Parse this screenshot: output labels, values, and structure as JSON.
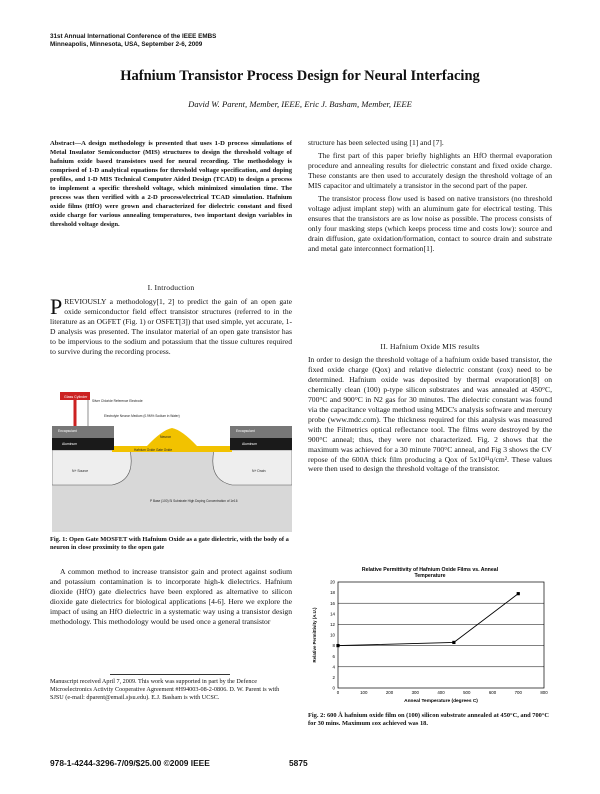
{
  "header": {
    "conference_line1": "31st Annual International Conference of the IEEE EMBS",
    "conference_line2": "Minneapolis, Minnesota, USA, September 2-6, 2009"
  },
  "title": "Hafnium Transistor Process Design for Neural Interfacing",
  "authors": "David W. Parent, Member, IEEE, Eric J. Basham, Member, IEEE",
  "abstract": "Abstract—A design methodology is presented that uses 1-D process simulations of Metal Insulator Semiconductor (MIS) structures to design the threshold voltage of hafnium oxide based transistors used for neural recording. The methodology is comprised of 1-D analytical equations for threshold voltage specification, and doping profiles, and 1-D MIS Technical Computer Aided Design (TCAD) to design a process to implement a specific threshold voltage, which minimized simulation time. The process was then verified with a 2-D process/electrical TCAD simulation. Hafnium oxide films (HfO) were grown and characterized for dielectric constant and fixed oxide charge for various annealing temperatures, two important design variables in threshold voltage design.",
  "section1": {
    "heading": "I. Introduction",
    "dropcap": "P",
    "p1": "REVIOUSLY a methodology[1, 2] to predict the gain of an open gate oxide semiconductor field effect transistor structures (referred to in the literature as an OGFET (Fig. 1) or OSFET[3]) that used simple, yet accurate, 1-D analysis was presented. The insulator material of an open gate transistor has to be impervious to the sodium and potassium that the tissue cultures required to survive during the recording process.",
    "p2": "A common method to increase transistor gain and protect against sodium and potassium contamination is to incorporate high-k dielectrics. Hafnium dioxide (HfO) gate dielectrics have been explored as alternative to silicon dioxide gate dielectrics for biological applications [4-6]. Here we explore the impact of using an HfO dielectric in a systematic way using a transistor design methodology. This methodology would be used once a general transistor"
  },
  "fig1": {
    "labels": {
      "neuron": "Neuron",
      "glass": "Glass Cylinder",
      "silver": "Silver Chloride Reference Electrode",
      "electrolyte": "Electrolyte Neuron Medium (0.9M% Sodium in Water)",
      "encap_l": "Encapsulant",
      "metal_l": "Aluminum",
      "encap_r": "Encapsulant",
      "metal_r": "Aluminum",
      "gate": "Hafnium Oxide Gate Oxide",
      "n_left": "N+ Source",
      "n_right": "N+ Drain",
      "p_base": "P Base (100) Si Substrate High Doping Concentration of 1e16"
    },
    "caption": "Fig. 1: Open Gate MOSFET with Hafnium Oxide as a gate dielectric, with the body of a neuron in close proximity to the open gate"
  },
  "footnote": {
    "line1": "Manuscript received April 7, 2009. This work was supported in part by the Defence Microelectronics Activity Cooperative Agreement #H94003-08-2-0806. D. W. Parent is with SJSU (e-mail: dparent@email.sjsu.edu). E.J. Basham is with UCSC."
  },
  "col2": {
    "p0": "structure has been selected using [1] and [7].",
    "p1": "The first part of this paper briefly highlights an HfO thermal evaporation procedure and annealing results for dielectric constant and fixed oxide charge. These constants are then used to accurately design the threshold voltage of an MIS capacitor and ultimately a transistor in the second part of the paper.",
    "p2": "The transistor process flow used is based on native transistors (no threshold voltage adjust implant step) with an aluminum gate for electrical testing. This ensures that the transistors are as low noise as possible. The process consists of only four masking steps (which keeps process time and costs low): source and drain diffusion, gate oxidation/formation, contact to source drain and substrate and metal gate interconnect formation[1].",
    "heading2": "II. Hafnium Oxide MIS results",
    "p3": "In order to design the threshold voltage of a hafnium oxide based transistor, the fixed oxide charge (Qox) and relative dielectric constant (εox) need to be determined. Hafnium oxide was deposited by thermal evaporation[8] on chemically clean (100) p-type silicon substrates and was annealed at 450°C, 700°C and 900°C in N2 gas for 30 minutes. The dielectric constant was found via the capacitance voltage method using MDC's analysis software and mercury probe (www.mdc.com). The thickness required for this analysis was measured with the Filmetrics optical reflectance tool. The films were destroyed by the 900°C anneal; thus, they were not characterized. Fig. 2 shows that the maximum was achieved for a 30 minute 700°C anneal, and Fig 3 shows the CV repose of the 600A thick film producing a Qox of 5x10¹¹q/cm². These values were then used to design the threshold voltage of the transistor."
  },
  "chart_data": {
    "type": "line",
    "title": "Relative Permittivity of Hafnium Oxide Films vs. Anneal Temperature",
    "xlabel": "Anneal Temperature (degrees C)",
    "ylabel": "Relative Permittivity (A.U.)",
    "x": [
      0,
      450,
      700
    ],
    "series": [
      {
        "values": [
          8.0,
          8.6,
          17.8
        ]
      }
    ],
    "xlim": [
      0,
      800
    ],
    "ylim": [
      0,
      20
    ],
    "xticks": [
      "0",
      "100",
      "200",
      "300",
      "400",
      "500",
      "600",
      "700",
      "800"
    ],
    "yticks": [
      "0",
      "2",
      "4",
      "6",
      "8",
      "10",
      "12",
      "14",
      "16",
      "18",
      "20"
    ],
    "grid": true
  },
  "fig2_caption": "Fig. 2: 600 Å hafnium oxide film on (100) silicon substrate annealed at 450°C, and 700°C for 30 mins. Maximum εox achieved was 18.",
  "footer": {
    "left": "978-1-4244-3296-7/09/$25.00 ©2009 IEEE",
    "page": "5875"
  }
}
